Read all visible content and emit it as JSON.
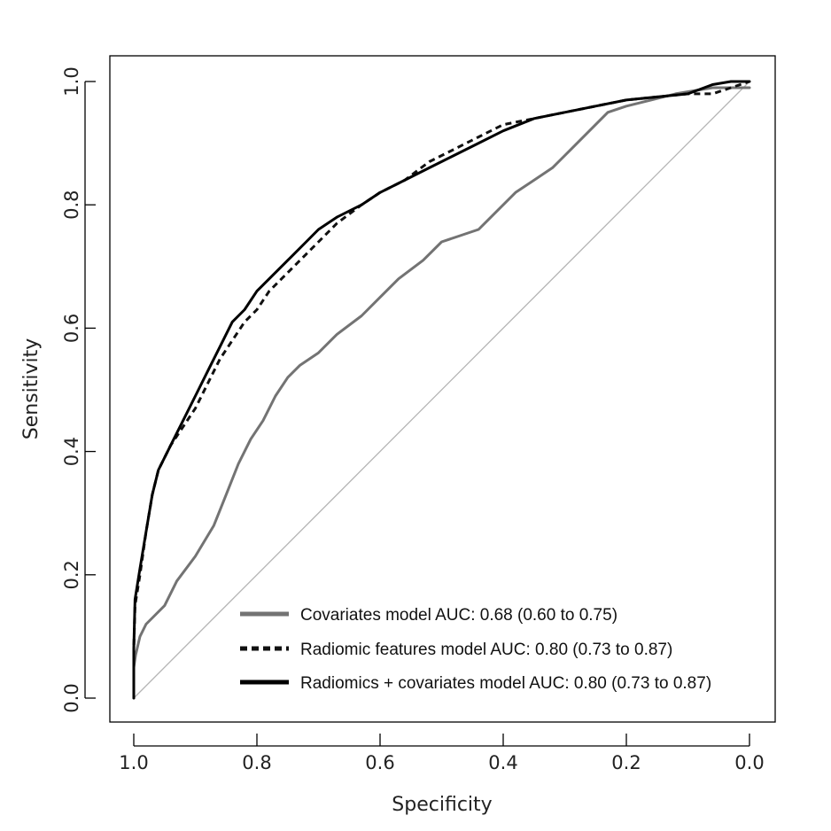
{
  "chart_data": {
    "type": "line",
    "title": "",
    "xlabel": "Specificity",
    "ylabel": "Sensitivity",
    "xlim": [
      1.0,
      0.0
    ],
    "ylim": [
      0.0,
      1.0
    ],
    "x_reversed": true,
    "x_ticks": [
      "1.0",
      "0.8",
      "0.6",
      "0.4",
      "0.2",
      "0.0"
    ],
    "y_ticks": [
      "0.0",
      "0.2",
      "0.4",
      "0.6",
      "0.8",
      "1.0"
    ],
    "grid": false,
    "legend_position": "bottom-right",
    "reference_line": {
      "from": [
        1.0,
        0.0
      ],
      "to": [
        0.0,
        1.0
      ],
      "color": "#b4b4b4"
    },
    "series": [
      {
        "name": "Covariates model AUC: 0.68 (0.60 to 0.75)",
        "color": "#737373",
        "dash": "solid",
        "specificity": [
          1.0,
          1.0,
          0.997,
          0.99,
          0.98,
          0.97,
          0.95,
          0.93,
          0.9,
          0.87,
          0.85,
          0.83,
          0.81,
          0.79,
          0.77,
          0.75,
          0.73,
          0.7,
          0.67,
          0.63,
          0.6,
          0.57,
          0.53,
          0.5,
          0.47,
          0.44,
          0.41,
          0.38,
          0.35,
          0.32,
          0.29,
          0.26,
          0.23,
          0.2,
          0.16,
          0.12,
          0.09,
          0.06,
          0.03,
          0.0
        ],
        "sensitivity": [
          0.0,
          0.05,
          0.07,
          0.1,
          0.12,
          0.13,
          0.15,
          0.19,
          0.23,
          0.28,
          0.33,
          0.38,
          0.42,
          0.45,
          0.49,
          0.52,
          0.54,
          0.56,
          0.59,
          0.62,
          0.65,
          0.68,
          0.71,
          0.74,
          0.75,
          0.76,
          0.79,
          0.82,
          0.84,
          0.86,
          0.89,
          0.92,
          0.95,
          0.96,
          0.97,
          0.98,
          0.985,
          0.99,
          0.99,
          0.99
        ]
      },
      {
        "name": "Radiomic features model AUC: 0.80 (0.73 to 0.87)",
        "color": "#111111",
        "dash": "dashed",
        "specificity": [
          1.0,
          1.0,
          0.998,
          0.99,
          0.98,
          0.97,
          0.96,
          0.94,
          0.92,
          0.9,
          0.88,
          0.86,
          0.84,
          0.82,
          0.8,
          0.78,
          0.76,
          0.74,
          0.72,
          0.7,
          0.67,
          0.63,
          0.6,
          0.56,
          0.52,
          0.48,
          0.44,
          0.4,
          0.35,
          0.3,
          0.25,
          0.2,
          0.15,
          0.1,
          0.06,
          0.03,
          0.0
        ],
        "sensitivity": [
          0.0,
          0.08,
          0.15,
          0.2,
          0.27,
          0.33,
          0.37,
          0.41,
          0.44,
          0.47,
          0.51,
          0.55,
          0.58,
          0.61,
          0.63,
          0.66,
          0.68,
          0.7,
          0.72,
          0.74,
          0.77,
          0.8,
          0.82,
          0.84,
          0.87,
          0.89,
          0.91,
          0.93,
          0.94,
          0.95,
          0.96,
          0.97,
          0.975,
          0.98,
          0.98,
          0.99,
          1.0
        ]
      },
      {
        "name": "Radiomics + covariates model AUC: 0.80 (0.73 to 0.87)",
        "color": "#000000",
        "dash": "solid",
        "specificity": [
          1.0,
          1.0,
          0.998,
          0.99,
          0.98,
          0.97,
          0.96,
          0.94,
          0.92,
          0.9,
          0.88,
          0.86,
          0.84,
          0.82,
          0.8,
          0.78,
          0.76,
          0.74,
          0.72,
          0.7,
          0.67,
          0.63,
          0.6,
          0.56,
          0.52,
          0.48,
          0.44,
          0.4,
          0.35,
          0.3,
          0.25,
          0.2,
          0.15,
          0.1,
          0.06,
          0.03,
          0.0
        ],
        "sensitivity": [
          0.0,
          0.08,
          0.16,
          0.21,
          0.27,
          0.33,
          0.37,
          0.41,
          0.45,
          0.49,
          0.53,
          0.57,
          0.61,
          0.63,
          0.66,
          0.68,
          0.7,
          0.72,
          0.74,
          0.76,
          0.78,
          0.8,
          0.82,
          0.84,
          0.86,
          0.88,
          0.9,
          0.92,
          0.94,
          0.95,
          0.96,
          0.97,
          0.975,
          0.98,
          0.995,
          1.0,
          1.0
        ]
      }
    ]
  }
}
